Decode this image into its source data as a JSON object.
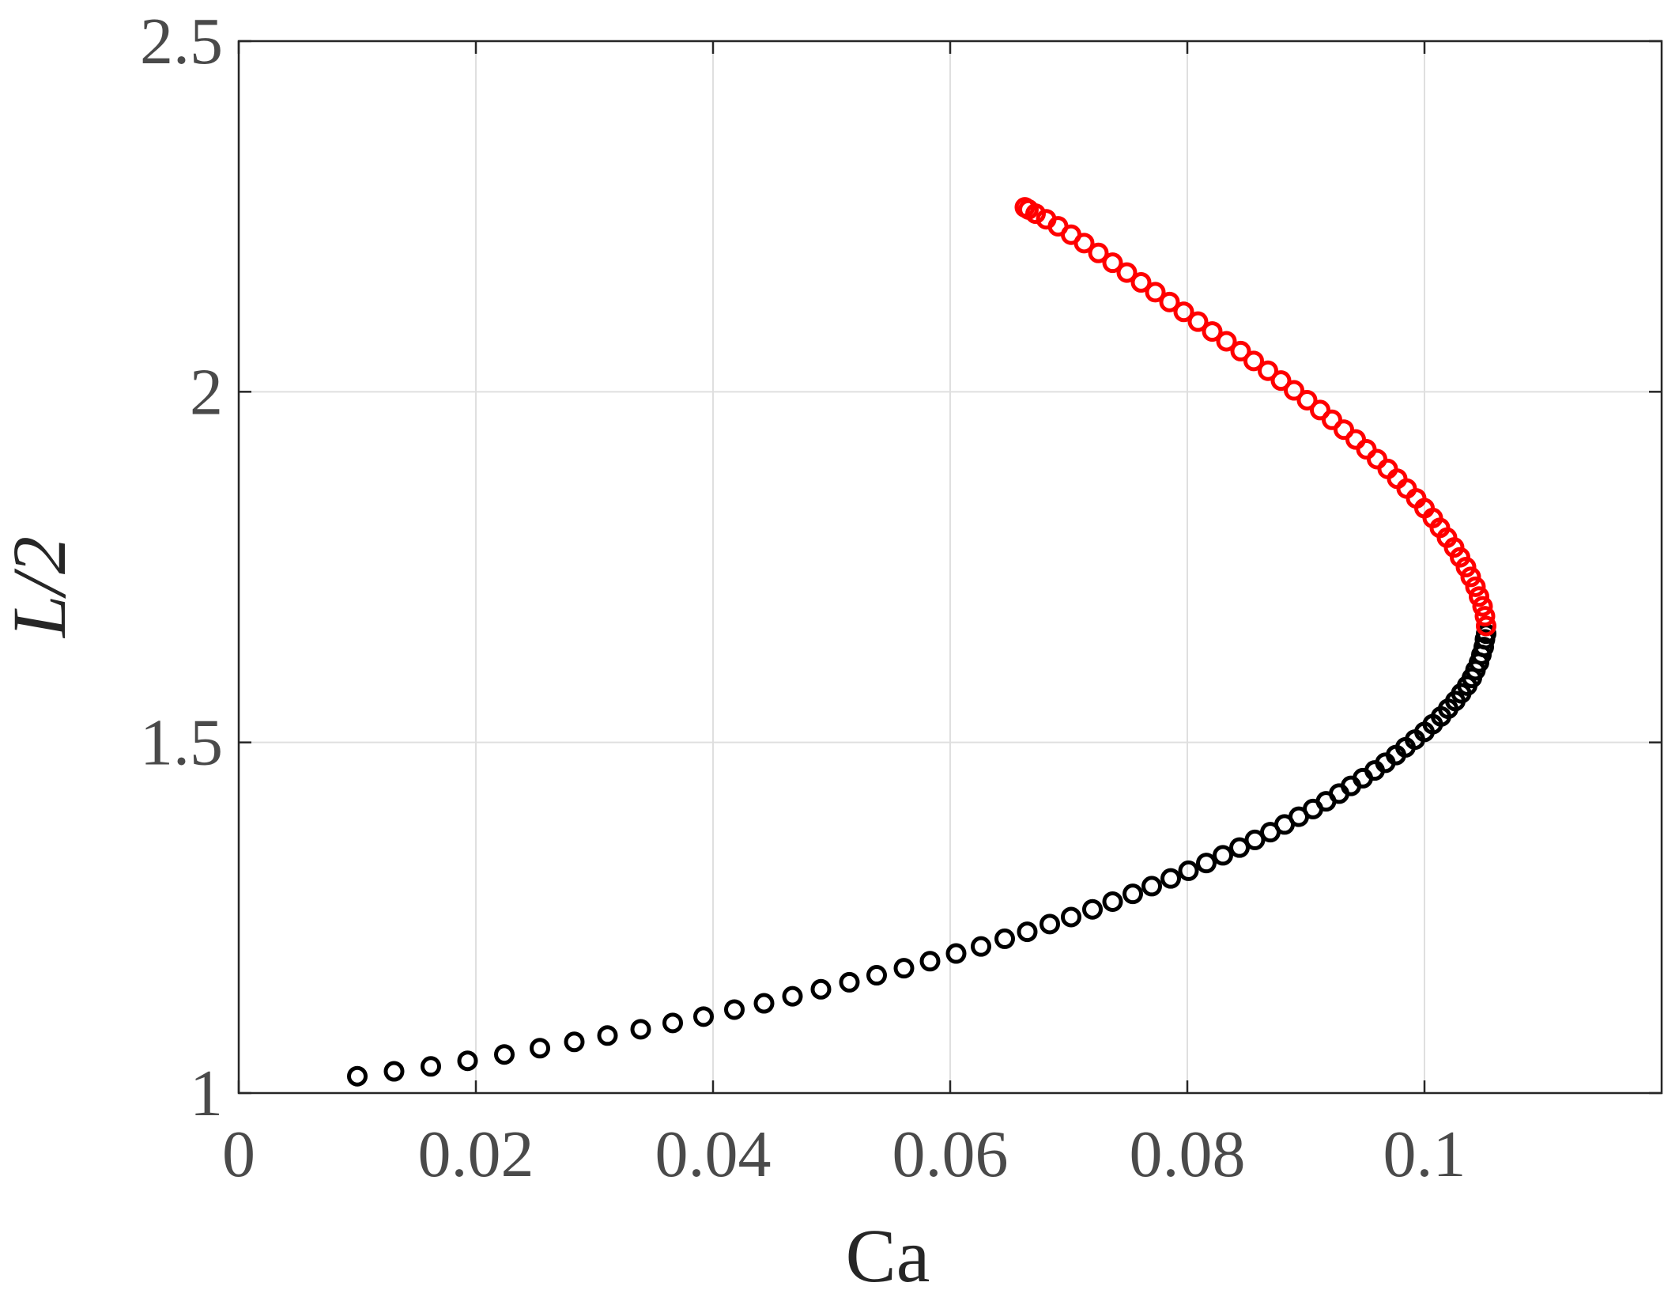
{
  "chart_data": {
    "type": "scatter",
    "title": "",
    "xlabel": "Ca",
    "ylabel": "L/2",
    "xlim": [
      0,
      0.12
    ],
    "ylim": [
      1,
      2.5
    ],
    "xticks": [
      0,
      0.02,
      0.04,
      0.06,
      0.08,
      0.1
    ],
    "xtick_labels": [
      "0",
      "0.02",
      "0.04",
      "0.06",
      "0.08",
      "0.1"
    ],
    "yticks": [
      1,
      1.5,
      2,
      2.5
    ],
    "ytick_labels": [
      "1",
      "1.5",
      "2",
      "2.5"
    ],
    "grid": true,
    "marker": "open-circle",
    "series": [
      {
        "color": "#000000",
        "points": [
          [
            0.01,
            1.024
          ],
          [
            0.0131,
            1.031
          ],
          [
            0.0162,
            1.038
          ],
          [
            0.0193,
            1.046
          ],
          [
            0.0224,
            1.055
          ],
          [
            0.0254,
            1.064
          ],
          [
            0.0283,
            1.073
          ],
          [
            0.0311,
            1.082
          ],
          [
            0.0339,
            1.091
          ],
          [
            0.0366,
            1.1
          ],
          [
            0.0392,
            1.109
          ],
          [
            0.0418,
            1.119
          ],
          [
            0.0443,
            1.128
          ],
          [
            0.0467,
            1.138
          ],
          [
            0.0491,
            1.148
          ],
          [
            0.0515,
            1.158
          ],
          [
            0.0538,
            1.168
          ],
          [
            0.0561,
            1.178
          ],
          [
            0.0583,
            1.188
          ],
          [
            0.0605,
            1.199
          ],
          [
            0.0626,
            1.209
          ],
          [
            0.0646,
            1.22
          ],
          [
            0.0665,
            1.23
          ],
          [
            0.0684,
            1.241
          ],
          [
            0.0702,
            1.251
          ],
          [
            0.072,
            1.262
          ],
          [
            0.0737,
            1.273
          ],
          [
            0.0754,
            1.284
          ],
          [
            0.077,
            1.295
          ],
          [
            0.0786,
            1.306
          ],
          [
            0.0801,
            1.317
          ],
          [
            0.0816,
            1.328
          ],
          [
            0.083,
            1.339
          ],
          [
            0.0844,
            1.35
          ],
          [
            0.0857,
            1.361
          ],
          [
            0.087,
            1.372
          ],
          [
            0.0882,
            1.383
          ],
          [
            0.0894,
            1.394
          ],
          [
            0.0906,
            1.405
          ],
          [
            0.0917,
            1.416
          ],
          [
            0.0928,
            1.427
          ],
          [
            0.0938,
            1.438
          ],
          [
            0.0948,
            1.449
          ],
          [
            0.0958,
            1.46
          ],
          [
            0.0967,
            1.471
          ],
          [
            0.0976,
            1.482
          ],
          [
            0.0984,
            1.493
          ],
          [
            0.0992,
            1.504
          ],
          [
            0.1,
            1.515
          ],
          [
            0.1007,
            1.526
          ],
          [
            0.1014,
            1.537
          ],
          [
            0.102,
            1.548
          ],
          [
            0.1026,
            1.559
          ],
          [
            0.1031,
            1.57
          ],
          [
            0.1036,
            1.581
          ],
          [
            0.104,
            1.592
          ],
          [
            0.1043,
            1.603
          ],
          [
            0.1046,
            1.614
          ],
          [
            0.1048,
            1.625
          ],
          [
            0.105,
            1.636
          ],
          [
            0.1051,
            1.647
          ],
          [
            0.1052,
            1.655
          ]
        ]
      },
      {
        "color": "#ff0000",
        "points": [
          [
            0.1052,
            1.666
          ],
          [
            0.1051,
            1.68
          ],
          [
            0.1049,
            1.694
          ],
          [
            0.1046,
            1.708
          ],
          [
            0.1043,
            1.722
          ],
          [
            0.1039,
            1.736
          ],
          [
            0.1035,
            1.75
          ],
          [
            0.103,
            1.764
          ],
          [
            0.1025,
            1.778
          ],
          [
            0.1019,
            1.792
          ],
          [
            0.1013,
            1.806
          ],
          [
            0.1007,
            1.82
          ],
          [
            0.1,
            1.834
          ],
          [
            0.0993,
            1.848
          ],
          [
            0.0985,
            1.862
          ],
          [
            0.0977,
            1.876
          ],
          [
            0.0969,
            1.89
          ],
          [
            0.096,
            1.904
          ],
          [
            0.0951,
            1.918
          ],
          [
            0.0942,
            1.932
          ],
          [
            0.0932,
            1.946
          ],
          [
            0.0922,
            1.96
          ],
          [
            0.0912,
            1.974
          ],
          [
            0.0901,
            1.988
          ],
          [
            0.089,
            2.002
          ],
          [
            0.0879,
            2.016
          ],
          [
            0.0868,
            2.03
          ],
          [
            0.0856,
            2.044
          ],
          [
            0.0845,
            2.058
          ],
          [
            0.0833,
            2.072
          ],
          [
            0.0821,
            2.086
          ],
          [
            0.0809,
            2.1
          ],
          [
            0.0797,
            2.114
          ],
          [
            0.0785,
            2.128
          ],
          [
            0.0773,
            2.142
          ],
          [
            0.0761,
            2.156
          ],
          [
            0.0749,
            2.17
          ],
          [
            0.0737,
            2.184
          ],
          [
            0.0725,
            2.198
          ],
          [
            0.0713,
            2.212
          ],
          [
            0.0702,
            2.224
          ],
          [
            0.0691,
            2.236
          ],
          [
            0.0681,
            2.246
          ],
          [
            0.0672,
            2.254
          ],
          [
            0.0666,
            2.26
          ],
          [
            0.0663,
            2.263
          ]
        ]
      }
    ]
  }
}
